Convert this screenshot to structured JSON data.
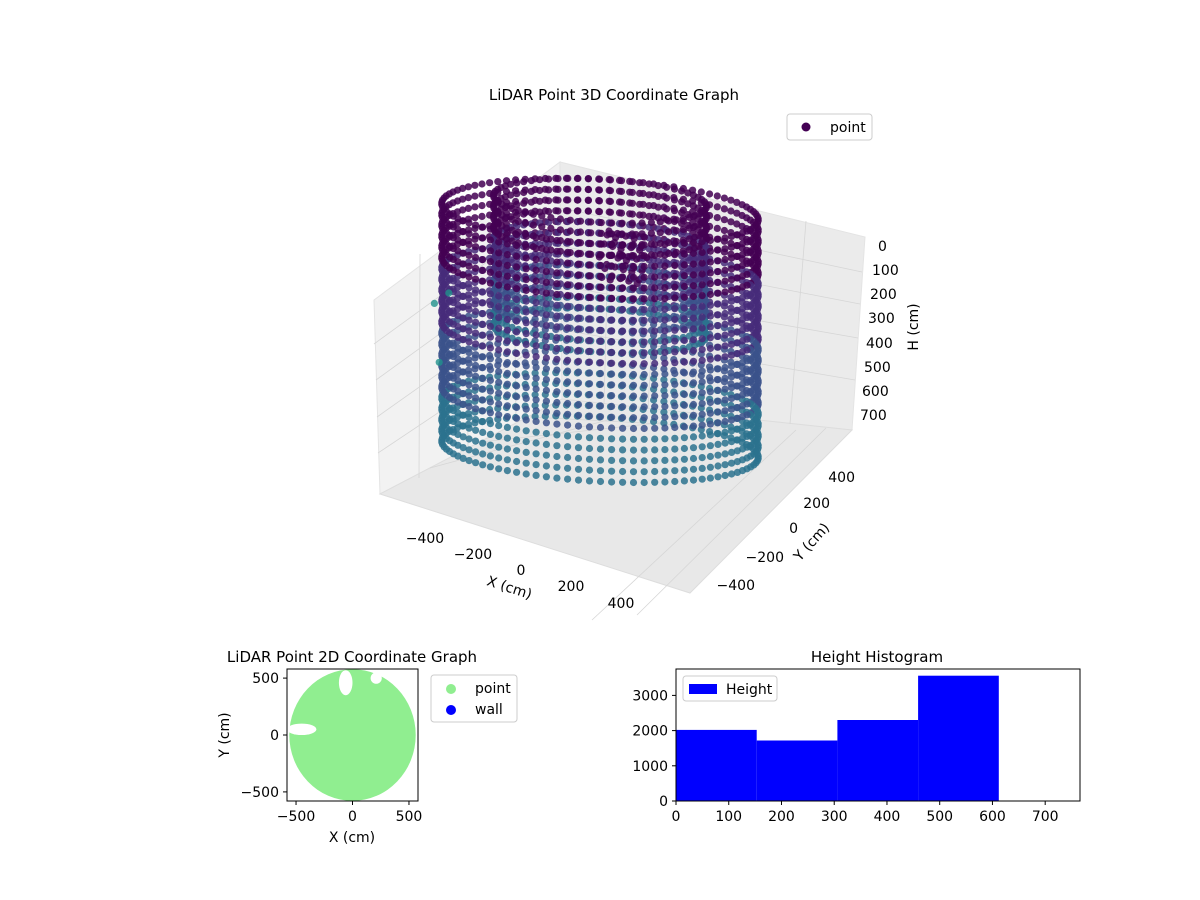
{
  "colors": {
    "viridis_top": "#440154",
    "viridis_mid": "#31688e",
    "viridis_low": "#35b779",
    "point_2d": "#90ee90",
    "wall_2d": "#0000ff",
    "histogram_bar": "#0000ff",
    "pane": "#f2f2f2",
    "grid": "#cccccc"
  },
  "chart_data": [
    {
      "id": "lidar-3d",
      "type": "scatter",
      "projection": "3d",
      "title": "LiDAR Point 3D Coordinate Graph",
      "xlabel": "X (cm)",
      "ylabel": "Y (cm)",
      "zlabel": "H (cm)",
      "xlim": [
        -600,
        600
      ],
      "ylim": [
        -550,
        550
      ],
      "zlim": [
        0,
        750
      ],
      "z_inverted": true,
      "x_ticks": [
        "−400",
        "−200",
        "0",
        "200",
        "400"
      ],
      "y_ticks": [
        "−400",
        "−200",
        "0",
        "200",
        "400"
      ],
      "z_ticks": [
        "0",
        "100",
        "200",
        "300",
        "400",
        "500",
        "600",
        "700"
      ],
      "colormap": "viridis",
      "structure": {
        "outer_wall": {
          "radius_cm": 490,
          "height_range": [
            60,
            720
          ]
        },
        "inner_wall": {
          "radius_cm": 330,
          "height_range": [
            30,
            400
          ]
        },
        "object": {
          "x_cm": -50,
          "y_cm": 200,
          "height_range": [
            150,
            300
          ]
        },
        "outliers": [
          {
            "x": -600,
            "y": 120,
            "h": 400
          },
          {
            "x": -560,
            "y": 60,
            "h": 550
          },
          {
            "x": -520,
            "y": 40,
            "h": 350
          }
        ]
      },
      "legend": {
        "entries": [
          "point"
        ],
        "placement": "upper-right"
      },
      "grid": true
    },
    {
      "id": "lidar-2d",
      "type": "scatter",
      "title": "LiDAR Point 2D Coordinate Graph",
      "xlabel": "X (cm)",
      "ylabel": "Y (cm)",
      "xlim": [
        -580,
        580
      ],
      "ylim": [
        -580,
        580
      ],
      "x_ticks": [
        -500,
        0,
        500
      ],
      "y_ticks": [
        -500,
        0,
        500
      ],
      "x_tick_labels": [
        "−500",
        "0",
        "500"
      ],
      "y_tick_labels": [
        "−500",
        "0",
        "500"
      ],
      "series": [
        {
          "name": "point",
          "shape": "disk",
          "radius_cm": 560,
          "gaps": [
            {
              "x": -580,
              "y": 0,
              "w": 260,
              "h": 100
            },
            {
              "x": -120,
              "y": 350,
              "w": 120,
              "h": 220
            },
            {
              "x": 160,
              "y": 450,
              "w": 100,
              "h": 100
            }
          ]
        },
        {
          "name": "wall",
          "points": []
        }
      ],
      "legend": {
        "entries": [
          "point",
          "wall"
        ],
        "placement": "outside-right"
      }
    },
    {
      "id": "height-hist",
      "type": "bar",
      "title": "Height Histogram",
      "xlim": [
        0,
        766
      ],
      "ylim": [
        0,
        3750
      ],
      "x_ticks": [
        0,
        100,
        200,
        300,
        400,
        500,
        600,
        700
      ],
      "y_ticks": [
        0,
        1000,
        2000,
        3000
      ],
      "series": [
        {
          "name": "Height",
          "bins": [
            {
              "x0": 0,
              "x1": 153,
              "count": 2020
            },
            {
              "x0": 153,
              "x1": 306,
              "count": 1720
            },
            {
              "x0": 306,
              "x1": 459,
              "count": 2300
            },
            {
              "x0": 459,
              "x1": 612,
              "count": 3560
            },
            {
              "x0": 612,
              "x1": 766,
              "count": 0
            }
          ]
        }
      ],
      "legend": {
        "entries": [
          "Height"
        ],
        "placement": "upper-left"
      }
    }
  ]
}
